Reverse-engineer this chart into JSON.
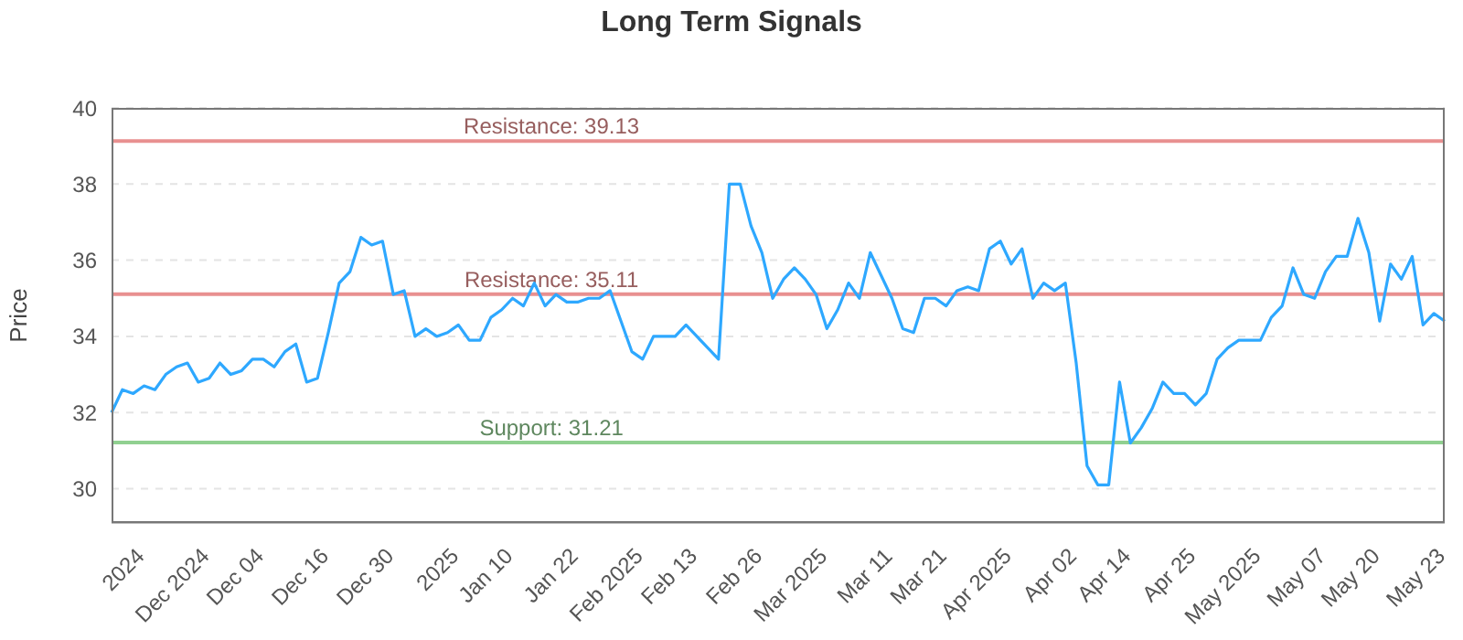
{
  "chart_data": {
    "type": "line",
    "title": "Long Term Signals",
    "ylabel": "Price",
    "categories": [
      null,
      null,
      null,
      "2024",
      null,
      null,
      null,
      null,
      null,
      "Dec 2024",
      null,
      null,
      null,
      null,
      "Dec 04",
      null,
      null,
      null,
      null,
      null,
      "Dec 16",
      null,
      null,
      null,
      null,
      null,
      "Dec 30",
      null,
      null,
      null,
      null,
      null,
      "2025",
      null,
      null,
      null,
      null,
      "Jan 10",
      null,
      null,
      null,
      null,
      null,
      "Jan 22",
      null,
      null,
      null,
      null,
      null,
      "Feb 2025",
      null,
      null,
      null,
      null,
      "Feb 13",
      null,
      null,
      null,
      null,
      null,
      "Feb 26",
      null,
      null,
      null,
      null,
      null,
      "Mar 2025",
      null,
      null,
      null,
      null,
      null,
      "Mar 11",
      null,
      null,
      null,
      null,
      "Mar 21",
      null,
      null,
      null,
      null,
      null,
      "Apr 2025",
      null,
      null,
      null,
      null,
      null,
      "Apr 02",
      null,
      null,
      null,
      null,
      "Apr 14",
      null,
      null,
      null,
      null,
      null,
      "Apr 25",
      null,
      null,
      null,
      null,
      null,
      "May 2025",
      null,
      null,
      null,
      null,
      null,
      "May 07",
      null,
      null,
      null,
      null,
      "May 20",
      null,
      null,
      null,
      null,
      null,
      "May 23"
    ],
    "series": [
      {
        "color": "#2ea8ff",
        "values": [
          32.0,
          32.6,
          32.5,
          32.7,
          32.6,
          33.0,
          33.2,
          33.3,
          32.8,
          32.9,
          33.3,
          33.0,
          33.1,
          33.4,
          33.4,
          33.2,
          33.6,
          33.8,
          32.8,
          32.9,
          34.1,
          35.4,
          35.7,
          36.6,
          36.4,
          36.5,
          35.1,
          35.2,
          34.0,
          34.2,
          34.0,
          34.1,
          34.3,
          33.9,
          33.9,
          34.5,
          34.7,
          35.0,
          34.8,
          35.4,
          34.8,
          35.1,
          34.9,
          34.9,
          35.0,
          35.0,
          35.2,
          34.4,
          33.6,
          33.4,
          34.0,
          34.0,
          34.0,
          34.3,
          34.0,
          33.7,
          33.4,
          38.0,
          38.0,
          36.9,
          36.2,
          35.0,
          35.5,
          35.8,
          35.5,
          35.1,
          34.2,
          34.7,
          35.4,
          35.0,
          36.2,
          35.6,
          35.0,
          34.2,
          34.1,
          35.0,
          35.0,
          34.8,
          35.2,
          35.3,
          35.2,
          36.3,
          36.5,
          35.9,
          36.3,
          35.0,
          35.4,
          35.2,
          35.4,
          33.3,
          30.6,
          30.1,
          30.1,
          32.8,
          31.2,
          31.6,
          32.1,
          32.8,
          32.5,
          32.5,
          32.2,
          32.5,
          33.4,
          33.7,
          33.9,
          33.9,
          33.9,
          34.5,
          34.8,
          35.8,
          35.1,
          35.0,
          35.7,
          36.1,
          36.1,
          37.1,
          36.2,
          34.4,
          35.9,
          35.5,
          36.1,
          34.3,
          34.6,
          34.4
        ]
      }
    ],
    "ylim": [
      29.1,
      40
    ],
    "yticks": [
      30,
      32,
      34,
      36,
      38,
      40
    ],
    "grid": "y",
    "ref_lines": [
      {
        "axis": "y",
        "value": 39.13,
        "label": "Resistance: 39.13",
        "color": "#e89090"
      },
      {
        "axis": "y",
        "value": 35.11,
        "label": "Resistance: 35.11",
        "color": "#e89090"
      },
      {
        "axis": "y",
        "value": 31.21,
        "label": "Support: 31.21",
        "color": "#90d090"
      }
    ]
  }
}
